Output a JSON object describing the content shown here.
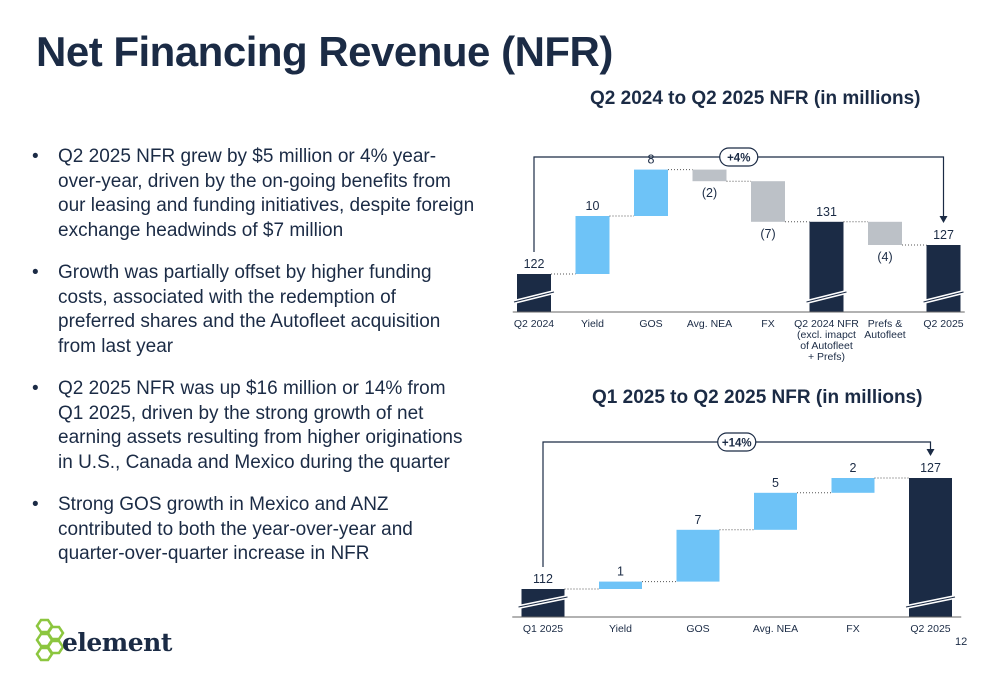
{
  "title": "Net Financing Revenue (NFR)",
  "bullets": [
    "Q2 2025 NFR grew by $5 million or 4% year-over-year, driven by the on-going benefits from our leasing and funding initiatives, despite foreign exchange headwinds of $7 million",
    "Growth was partially offset by higher funding costs, associated with the redemption of preferred shares and the Autofleet acquisition from last year",
    "Q2 2025 NFR was up $16 million or 14% from Q1 2025, driven by the strong growth of net earning assets resulting from higher originations in U.S., Canada and Mexico during the quarter",
    "Strong GOS growth in Mexico and ANZ contributed to both the year-over-year and quarter-over-quarter increase in NFR"
  ],
  "bullet_symbol": "•",
  "page_number": "12",
  "logo": {
    "text": "element",
    "icon": "hexagon-cluster-icon"
  },
  "colors": {
    "navy": "#1b2b45",
    "blue": "#6ec3f7",
    "gray": "#bcc1c7"
  },
  "chart_data": [
    {
      "type": "bar",
      "subtype": "waterfall",
      "title": "Q2 2024 to Q2 2025 NFR (in millions)",
      "categories": [
        "Q2 2024",
        "Yield",
        "GOS",
        "Avg. NEA",
        "FX",
        "Q2 2024 NFR (excl. imapct of Autofleet + Prefs)",
        "Prefs & Autofleet",
        "Q2 2025"
      ],
      "category_lines": [
        [
          "Q2 2024"
        ],
        [
          "Yield"
        ],
        [
          "GOS"
        ],
        [
          "Avg. NEA"
        ],
        [
          "FX"
        ],
        [
          "Q2 2024 NFR",
          "(excl. imapct",
          "of Autofleet",
          "+ Prefs)"
        ],
        [
          "Prefs &",
          "Autofleet"
        ],
        [
          "Q2 2025"
        ]
      ],
      "values": [
        122,
        10,
        8,
        -2,
        -7,
        131,
        -4,
        127
      ],
      "labels": [
        "122",
        "10",
        "8",
        "(2)",
        "(7)",
        "131",
        "(4)",
        "127"
      ],
      "kinds": [
        "total",
        "increase",
        "increase",
        "decrease",
        "decrease",
        "total",
        "decrease",
        "total"
      ],
      "change_label": "+4%",
      "axis_break": true
    },
    {
      "type": "bar",
      "subtype": "waterfall",
      "title": "Q1 2025 to Q2 2025 NFR (in millions)",
      "categories": [
        "Q1 2025",
        "Yield",
        "GOS",
        "Avg. NEA",
        "FX",
        "Q2 2025"
      ],
      "category_lines": [
        [
          "Q1 2025"
        ],
        [
          "Yield"
        ],
        [
          "GOS"
        ],
        [
          "Avg. NEA"
        ],
        [
          "FX"
        ],
        [
          "Q2 2025"
        ]
      ],
      "values": [
        112,
        1,
        7,
        5,
        2,
        127
      ],
      "labels": [
        "112",
        "1",
        "7",
        "5",
        "2",
        "127"
      ],
      "kinds": [
        "total",
        "increase",
        "increase",
        "increase",
        "increase",
        "total"
      ],
      "change_label": "+14%",
      "axis_break": true
    }
  ]
}
